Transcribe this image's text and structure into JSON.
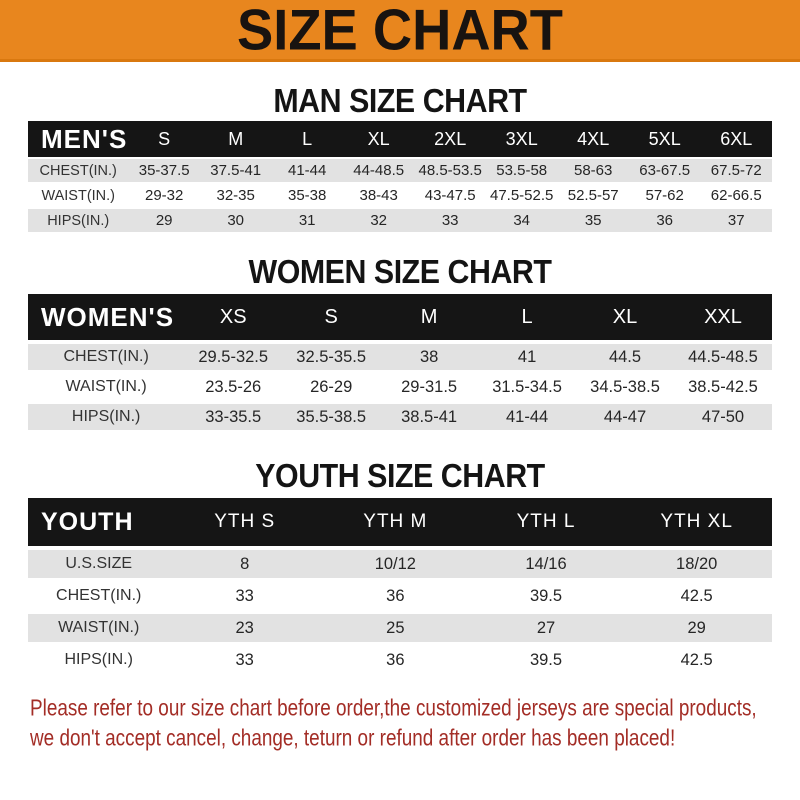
{
  "banner": {
    "title": "SIZE CHART",
    "background": "#E8861E",
    "title_color": "#181310"
  },
  "chart_data": [
    {
      "type": "table",
      "title": "MAN SIZE CHART",
      "corner_label": "MEN'S",
      "columns": [
        "S",
        "M",
        "L",
        "XL",
        "2XL",
        "3XL",
        "4XL",
        "5XL",
        "6XL"
      ],
      "rows": [
        {
          "label": "CHEST(IN.)",
          "values": [
            "35-37.5",
            "37.5-41",
            "41-44",
            "44-48.5",
            "48.5-53.5",
            "53.5-58",
            "58-63",
            "63-67.5",
            "67.5-72"
          ]
        },
        {
          "label": "WAIST(IN.)",
          "values": [
            "29-32",
            "32-35",
            "35-38",
            "38-43",
            "43-47.5",
            "47.5-52.5",
            "52.5-57",
            "57-62",
            "62-66.5"
          ]
        },
        {
          "label": "HIPS(IN.)",
          "values": [
            "29",
            "30",
            "31",
            "32",
            "33",
            "34",
            "35",
            "36",
            "37"
          ]
        }
      ]
    },
    {
      "type": "table",
      "title": "WOMEN SIZE CHART",
      "corner_label": "WOMEN'S",
      "columns": [
        "XS",
        "S",
        "M",
        "L",
        "XL",
        "XXL"
      ],
      "rows": [
        {
          "label": "CHEST(IN.)",
          "values": [
            "29.5-32.5",
            "32.5-35.5",
            "38",
            "41",
            "44.5",
            "44.5-48.5"
          ]
        },
        {
          "label": "WAIST(IN.)",
          "values": [
            "23.5-26",
            "26-29",
            "29-31.5",
            "31.5-34.5",
            "34.5-38.5",
            "38.5-42.5"
          ]
        },
        {
          "label": "HIPS(IN.)",
          "values": [
            "33-35.5",
            "35.5-38.5",
            "38.5-41",
            "41-44",
            "44-47",
            "47-50"
          ]
        }
      ]
    },
    {
      "type": "table",
      "title": "YOUTH SIZE CHART",
      "corner_label": "YOUTH",
      "columns": [
        "YTH S",
        "YTH M",
        "YTH L",
        "YTH XL"
      ],
      "rows": [
        {
          "label": "U.S.SIZE",
          "values": [
            "8",
            "10/12",
            "14/16",
            "18/20"
          ]
        },
        {
          "label": "CHEST(IN.)",
          "values": [
            "33",
            "36",
            "39.5",
            "42.5"
          ]
        },
        {
          "label": "WAIST(IN.)",
          "values": [
            "23",
            "25",
            "27",
            "29"
          ]
        },
        {
          "label": "HIPS(IN.)",
          "values": [
            "33",
            "36",
            "39.5",
            "42.5"
          ]
        }
      ]
    }
  ],
  "footer": {
    "lines": [
      "Please refer to our size chart before order,the customized jerseys are special products,",
      "we don't accept cancel, change, teturn or refund after order has been placed!"
    ]
  },
  "colors": {
    "banner_orange": "#E8861E",
    "header_bar_black": "#151515",
    "row_gray": "#E2E2E2",
    "notice_red": "#A32D26"
  }
}
